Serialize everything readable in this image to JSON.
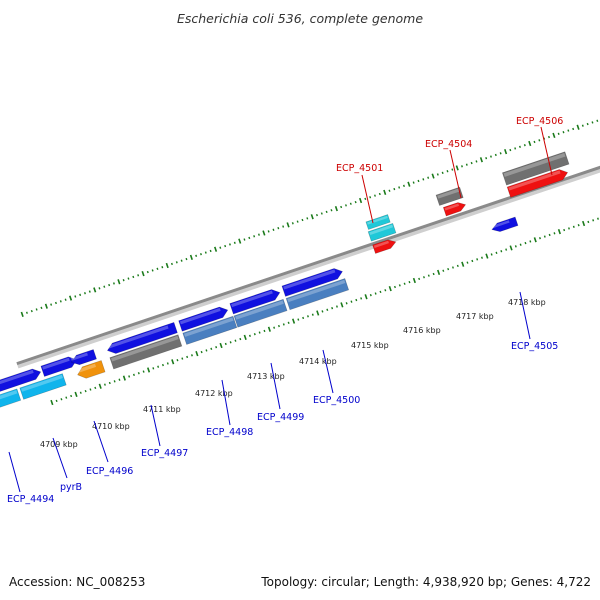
{
  "title": "Escherichia coli 536, complete genome",
  "footer": {
    "accession": "Accession: NC_008253",
    "summary": "Topology: circular; Length: 4,938,920 bp; Genes: 4,722"
  },
  "colors": {
    "label_top": "#cc0000",
    "label_bottom": "#0000cc",
    "scale_dots": "#1a7a1a",
    "backbone": "#8a8a8a"
  },
  "scale_ticks": [
    "4709 kbp",
    "4710 kbp",
    "4711 kbp",
    "4712 kbp",
    "4713 kbp",
    "4714 kbp",
    "4715 kbp",
    "4716 kbp",
    "4717 kbp",
    "4718 kbp"
  ],
  "labels_top": [
    "ECP_4501",
    "ECP_4504",
    "ECP_4506"
  ],
  "labels_bottom": [
    "ECP_4494",
    "pyrB",
    "ECP_4496",
    "ECP_4497",
    "ECP_4498",
    "ECP_4499",
    "ECP_4500",
    "ECP_4505"
  ],
  "gene_colors": {
    "blue": "#1010e0",
    "steelblue": "#4a7fc0",
    "gray": "#707070",
    "red": "#ee1111",
    "cyan": "#20c8d8",
    "skyblue": "#10b4ec",
    "orange": "#f0920c"
  }
}
